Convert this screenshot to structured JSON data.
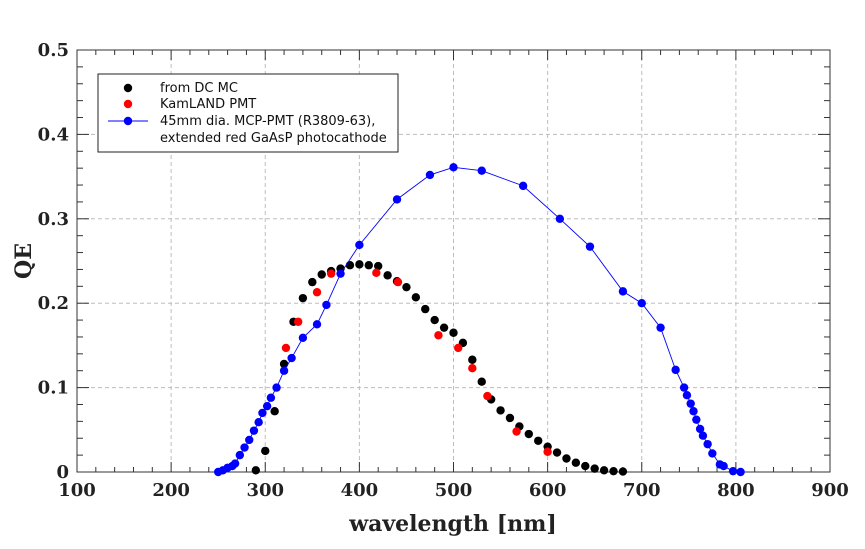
{
  "chart_data": {
    "type": "scatter",
    "title": "",
    "xlabel": "wavelength [nm]",
    "ylabel": "QE",
    "xlim": [
      100,
      900
    ],
    "ylim": [
      0,
      0.5
    ],
    "x_ticks": [
      100,
      200,
      300,
      400,
      500,
      600,
      700,
      800,
      900
    ],
    "y_ticks": [
      0,
      0.1,
      0.2,
      0.3,
      0.4,
      0.5
    ],
    "x_tick_labels": [
      "100",
      "200",
      "300",
      "400",
      "500",
      "600",
      "700",
      "800",
      "900"
    ],
    "y_tick_labels": [
      "0",
      "0.1",
      "0.2",
      "0.3",
      "0.4",
      "0.5"
    ],
    "grid": true,
    "legend_position": "top-left",
    "series": [
      {
        "name": "from DC MC",
        "color": "#000000",
        "line": false,
        "points": [
          [
            290,
            0.002
          ],
          [
            300,
            0.025
          ],
          [
            310,
            0.072
          ],
          [
            320,
            0.128
          ],
          [
            330,
            0.178
          ],
          [
            340,
            0.206
          ],
          [
            350,
            0.225
          ],
          [
            360,
            0.234
          ],
          [
            370,
            0.238
          ],
          [
            380,
            0.241
          ],
          [
            390,
            0.245
          ],
          [
            400,
            0.246
          ],
          [
            410,
            0.245
          ],
          [
            420,
            0.244
          ],
          [
            430,
            0.233
          ],
          [
            440,
            0.226
          ],
          [
            450,
            0.219
          ],
          [
            460,
            0.207
          ],
          [
            470,
            0.193
          ],
          [
            480,
            0.18
          ],
          [
            490,
            0.171
          ],
          [
            500,
            0.165
          ],
          [
            510,
            0.153
          ],
          [
            520,
            0.133
          ],
          [
            530,
            0.107
          ],
          [
            540,
            0.086
          ],
          [
            550,
            0.073
          ],
          [
            560,
            0.064
          ],
          [
            570,
            0.054
          ],
          [
            580,
            0.045
          ],
          [
            590,
            0.037
          ],
          [
            600,
            0.03
          ],
          [
            610,
            0.023
          ],
          [
            620,
            0.016
          ],
          [
            630,
            0.011
          ],
          [
            640,
            0.007
          ],
          [
            650,
            0.004
          ],
          [
            660,
            0.002
          ],
          [
            670,
            0.001
          ],
          [
            680,
            0.0005
          ]
        ]
      },
      {
        "name": "KamLAND PMT",
        "color": "#ff0000",
        "line": false,
        "points": [
          [
            322,
            0.147
          ],
          [
            335,
            0.178
          ],
          [
            355,
            0.213
          ],
          [
            370,
            0.235
          ],
          [
            418,
            0.236
          ],
          [
            441,
            0.225
          ],
          [
            484,
            0.162
          ],
          [
            505,
            0.147
          ],
          [
            520,
            0.123
          ],
          [
            536,
            0.09
          ],
          [
            567,
            0.048
          ],
          [
            600,
            0.024
          ]
        ]
      },
      {
        "name": "45mm dia. MCP-PMT (R3809-63),",
        "name_line2": "extended red GaAsP photocathode",
        "color": "#0000ff",
        "line": true,
        "points": [
          [
            250,
            0.0
          ],
          [
            255,
            0.002
          ],
          [
            260,
            0.005
          ],
          [
            265,
            0.007
          ],
          [
            268,
            0.01
          ],
          [
            273,
            0.02
          ],
          [
            278,
            0.029
          ],
          [
            283,
            0.038
          ],
          [
            288,
            0.049
          ],
          [
            293,
            0.059
          ],
          [
            297,
            0.07
          ],
          [
            302,
            0.078
          ],
          [
            306,
            0.088
          ],
          [
            312,
            0.1
          ],
          [
            320,
            0.12
          ],
          [
            328,
            0.135
          ],
          [
            340,
            0.159
          ],
          [
            355,
            0.175
          ],
          [
            365,
            0.198
          ],
          [
            380,
            0.235
          ],
          [
            400,
            0.269
          ],
          [
            440,
            0.323
          ],
          [
            475,
            0.352
          ],
          [
            500,
            0.361
          ],
          [
            530,
            0.357
          ],
          [
            574,
            0.339
          ],
          [
            613,
            0.3
          ],
          [
            645,
            0.267
          ],
          [
            680,
            0.214
          ],
          [
            700,
            0.2
          ],
          [
            720,
            0.171
          ],
          [
            736,
            0.121
          ],
          [
            745,
            0.1
          ],
          [
            748,
            0.091
          ],
          [
            752,
            0.081
          ],
          [
            755,
            0.072
          ],
          [
            758,
            0.062
          ],
          [
            762,
            0.051
          ],
          [
            765,
            0.043
          ],
          [
            770,
            0.033
          ],
          [
            775,
            0.022
          ],
          [
            783,
            0.009
          ],
          [
            787,
            0.007
          ],
          [
            797,
            0.001
          ],
          [
            805,
            0.0
          ]
        ]
      }
    ]
  }
}
